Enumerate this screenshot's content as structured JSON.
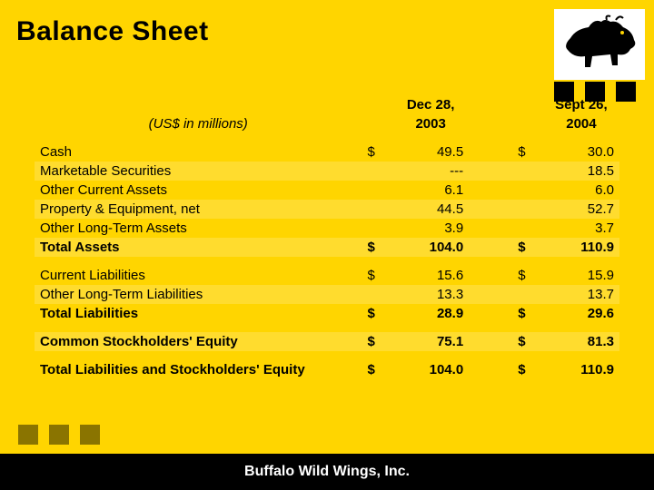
{
  "colors": {
    "page_bg": "#ffd500",
    "footer_bg": "#000000",
    "footer_text": "#ffffff",
    "text": "#000000",
    "stripe": "rgba(255,255,255,0.18)",
    "bottom_square": "#8a7400",
    "top_square": "#000000",
    "logo_bg": "#ffffff"
  },
  "title": "Balance Sheet",
  "footer": "Buffalo Wild Wings, Inc.",
  "units_label": "(US$ in millions)",
  "table": {
    "type": "table",
    "columns": [
      {
        "date_line1": "Dec 28,",
        "date_line2": "2003"
      },
      {
        "date_line1": "Sept 26,",
        "date_line2": "2004"
      }
    ],
    "rows": [
      {
        "label": "Cash",
        "bold": false,
        "c1_sym": "$",
        "c1_val": "49.5",
        "c2_sym": "$",
        "c2_val": "30.0"
      },
      {
        "label": "Marketable Securities",
        "bold": false,
        "c1_sym": "",
        "c1_val": "---",
        "c2_sym": "",
        "c2_val": "18.5"
      },
      {
        "label": "Other Current Assets",
        "bold": false,
        "c1_sym": "",
        "c1_val": "6.1",
        "c2_sym": "",
        "c2_val": "6.0"
      },
      {
        "label": "Property & Equipment, net",
        "bold": false,
        "c1_sym": "",
        "c1_val": "44.5",
        "c2_sym": "",
        "c2_val": "52.7"
      },
      {
        "label": "Other Long-Term Assets",
        "bold": false,
        "c1_sym": "",
        "c1_val": "3.9",
        "c2_sym": "",
        "c2_val": "3.7"
      },
      {
        "label": "Total Assets",
        "bold": true,
        "c1_sym": "$",
        "c1_val": "104.0",
        "c2_sym": "$",
        "c2_val": "110.9"
      }
    ],
    "rows2": [
      {
        "label": "Current Liabilities",
        "bold": false,
        "c1_sym": "$",
        "c1_val": "15.6",
        "c2_sym": "$",
        "c2_val": "15.9"
      },
      {
        "label": "Other Long-Term Liabilities",
        "bold": false,
        "c1_sym": "",
        "c1_val": "13.3",
        "c2_sym": "",
        "c2_val": "13.7"
      },
      {
        "label": "Total Liabilities",
        "bold": true,
        "c1_sym": "$",
        "c1_val": "28.9",
        "c2_sym": "$",
        "c2_val": "29.6"
      }
    ],
    "rows3": [
      {
        "label": "Common Stockholders' Equity",
        "bold": true,
        "c1_sym": "$",
        "c1_val": "75.1",
        "c2_sym": "$",
        "c2_val": "81.3"
      }
    ],
    "rows4": [
      {
        "label": "Total Liabilities and Stockholders' Equity",
        "bold": true,
        "c1_sym": "$",
        "c1_val": "104.0",
        "c2_sym": "$",
        "c2_val": "110.9"
      }
    ]
  }
}
